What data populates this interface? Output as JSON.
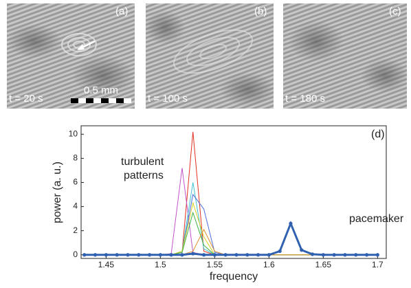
{
  "panels": [
    {
      "label": "(a)",
      "time": "t = 20 s"
    },
    {
      "label": "(b)",
      "time": "t = 100 s"
    },
    {
      "label": "(c)",
      "time": "t = 180 s"
    }
  ],
  "scale_bar": "0.5 mm",
  "chart_data": {
    "type": "line",
    "panel_label": "(d)",
    "x_label": "frequency",
    "y_label": "power (a. u.)",
    "annotations": [
      "turbulent",
      "patterns",
      "pacemaker"
    ],
    "x": [
      1.43,
      1.44,
      1.45,
      1.46,
      1.47,
      1.48,
      1.49,
      1.5,
      1.51,
      1.52,
      1.53,
      1.54,
      1.55,
      1.56,
      1.57,
      1.58,
      1.59,
      1.6,
      1.61,
      1.62,
      1.63,
      1.64,
      1.65,
      1.66,
      1.67,
      1.68,
      1.69,
      1.7
    ],
    "xlim": [
      1.427,
      1.708
    ],
    "ylim": [
      -0.3,
      10.7
    ],
    "xticks": [
      1.45,
      1.5,
      1.55,
      1.6,
      1.65,
      1.7
    ],
    "yticks": [
      0,
      2,
      4,
      6,
      8,
      10
    ],
    "series": [
      {
        "color": "#e03020",
        "values": [
          0,
          0,
          0,
          0,
          0,
          0,
          0,
          0,
          0,
          0.2,
          10.2,
          0.3,
          0,
          0,
          0,
          0,
          0,
          0,
          0,
          0,
          0,
          0,
          0,
          0,
          0,
          0,
          0,
          0
        ]
      },
      {
        "color": "#c050c8",
        "values": [
          0,
          0,
          0,
          0,
          0,
          0,
          0,
          0,
          0.1,
          7.2,
          0.2,
          0,
          0,
          0,
          0,
          0,
          0,
          0,
          0,
          0,
          0,
          0,
          0,
          0,
          0,
          0,
          0,
          0
        ]
      },
      {
        "color": "#40c0d0",
        "values": [
          0,
          0,
          0,
          0,
          0,
          0,
          0,
          0,
          0,
          0.3,
          6,
          0.5,
          0,
          0,
          0,
          0,
          0,
          0,
          0,
          0,
          0,
          0,
          0,
          0,
          0,
          0,
          0,
          0
        ]
      },
      {
        "color": "#4a6ad8",
        "values": [
          0,
          0,
          0,
          0,
          0,
          0,
          0,
          0,
          0,
          0.2,
          5,
          3.8,
          0.2,
          0,
          0,
          0,
          0,
          0,
          0,
          0,
          0,
          0,
          0,
          0,
          0,
          0,
          0,
          0
        ]
      },
      {
        "color": "#d8d020",
        "values": [
          0,
          0,
          0,
          0,
          0,
          0,
          0,
          0,
          0,
          0.3,
          4.3,
          1.5,
          0,
          0,
          0,
          0,
          0,
          0,
          0,
          0,
          0,
          0,
          0,
          0,
          0,
          0,
          0,
          0
        ]
      },
      {
        "color": "#40b040",
        "values": [
          0,
          0,
          0,
          0,
          0,
          0,
          0,
          0,
          0,
          0.2,
          3.5,
          0.8,
          0,
          0,
          0,
          0,
          0,
          0,
          0,
          0,
          0,
          0,
          0,
          0,
          0,
          0,
          0,
          0
        ]
      },
      {
        "color": "#e09030",
        "values": [
          0,
          0,
          0,
          0,
          0,
          0,
          0,
          0,
          0,
          0,
          0.3,
          2.1,
          0.3,
          0,
          0,
          0,
          0,
          0,
          0,
          0,
          0,
          0,
          0,
          0,
          0,
          0,
          0,
          0
        ]
      },
      {
        "color": "#3060b0",
        "line_width": 3,
        "markers": true,
        "values": [
          0,
          0,
          0,
          0,
          0,
          0,
          0,
          0,
          0,
          0,
          0.1,
          0,
          0,
          0,
          0,
          0,
          0,
          0,
          0.3,
          2.6,
          0.4,
          0.05,
          0,
          0,
          0,
          0,
          0,
          0
        ]
      }
    ]
  }
}
